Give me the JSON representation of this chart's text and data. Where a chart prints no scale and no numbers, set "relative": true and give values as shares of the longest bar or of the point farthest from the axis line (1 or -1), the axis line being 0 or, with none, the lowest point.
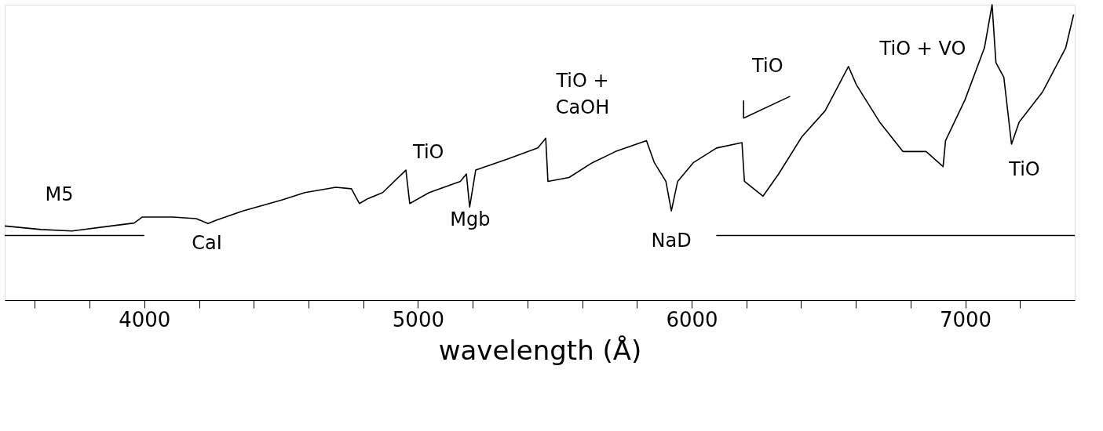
{
  "chart_data": {
    "type": "line",
    "relative": true,
    "xlabel": "wavelength (Å)",
    "xlim": [
      3490,
      7400
    ],
    "xticks": [
      {
        "value": 3600,
        "label": null
      },
      {
        "value": 3800,
        "label": null
      },
      4000,
      {
        "value": 4200,
        "label": null
      },
      {
        "value": 4400,
        "label": null
      },
      {
        "value": 4600,
        "label": null
      },
      {
        "value": 4800,
        "label": null
      },
      5000,
      {
        "value": 5200,
        "label": null
      },
      {
        "value": 5400,
        "label": null
      },
      {
        "value": 5600,
        "label": null
      },
      {
        "value": 5800,
        "label": null
      },
      6000,
      {
        "value": 6200,
        "label": null
      },
      {
        "value": 6400,
        "label": null
      },
      {
        "value": 6600,
        "label": null
      },
      {
        "value": 6800,
        "label": null
      },
      7000,
      {
        "value": 7200,
        "label": null
      }
    ],
    "grid": false,
    "marker": "none",
    "line_style": "solid",
    "series": [
      {
        "color": "#000000",
        "x": [
          3490,
          3623,
          3736,
          3878,
          3963,
          3992,
          4105,
          4190,
          4233,
          4261,
          4360,
          4502,
          4587,
          4700,
          4757,
          4786,
          4814,
          4871,
          4956,
          4970,
          5041,
          5155,
          5177,
          5189,
          5211,
          5325,
          5438,
          5467,
          5475,
          5552,
          5637,
          5722,
          5835,
          5864,
          5906,
          5926,
          5949,
          6006,
          6091,
          6184,
          6193,
          6261,
          6318,
          6403,
          6488,
          6573,
          6602,
          6687,
          6772,
          6857,
          6919,
          6928,
          6999,
          7070,
          7098,
          7112,
          7141,
          7169,
          7197,
          7282,
          7367,
          7396
        ],
        "values": [
          0.251,
          0.239,
          0.234,
          0.251,
          0.261,
          0.281,
          0.281,
          0.276,
          0.259,
          0.27,
          0.302,
          0.339,
          0.364,
          0.382,
          0.377,
          0.327,
          0.342,
          0.364,
          0.44,
          0.327,
          0.364,
          0.402,
          0.427,
          0.315,
          0.44,
          0.477,
          0.515,
          0.548,
          0.402,
          0.415,
          0.465,
          0.503,
          0.54,
          0.465,
          0.402,
          0.302,
          0.402,
          0.465,
          0.515,
          0.533,
          0.402,
          0.352,
          0.427,
          0.553,
          0.641,
          0.791,
          0.729,
          0.603,
          0.503,
          0.503,
          0.452,
          0.54,
          0.678,
          0.854,
          1.0,
          0.804,
          0.754,
          0.528,
          0.603,
          0.704,
          0.854,
          0.967
        ]
      },
      {
        "color": "#000000",
        "x": [
          3490,
          4000
        ],
        "values": [
          0.219,
          0.219
        ]
      },
      {
        "color": "#000000",
        "x": [
          6090,
          7400
        ],
        "values": [
          0.219,
          0.219
        ]
      },
      {
        "color": "#000000",
        "x": [
          6190,
          6190,
          6360
        ],
        "values": [
          0.676,
          0.616,
          0.69
        ]
      }
    ],
    "annotations": [
      "M5",
      "CaI",
      "TiO",
      "Mgb",
      "TiO +",
      "CaOH",
      "NaD",
      "TiO",
      "TiO + VO",
      "TiO"
    ]
  }
}
